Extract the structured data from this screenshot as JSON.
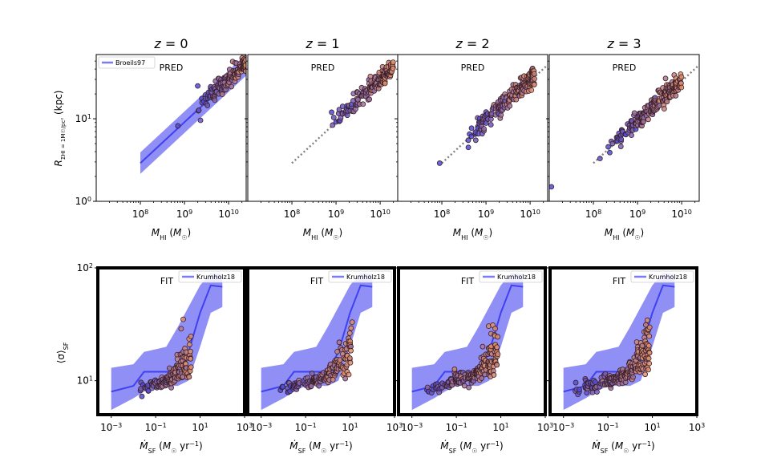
{
  "figure": {
    "column_titles": [
      "z = 0",
      "z = 1",
      "z = 2",
      "z = 3"
    ],
    "colors": {
      "band": "#7b7bf5",
      "band_line": "#4040f0",
      "dotted": "#808080",
      "point_low": "#4b4bd8",
      "point_high": "#e0906a",
      "point_edge": "#3a1f2a"
    }
  },
  "chart_data": [
    {
      "row": "top",
      "type": "scatter",
      "panel_label": "PRED",
      "legend": "Broeils97",
      "xlabel": "M_HI (M_sun)",
      "ylabel": "R_SigmaHI=1Msun/pc2 (kpc)",
      "xscale": "log",
      "yscale": "log",
      "xlim": [
        10000000.0,
        25000000000.0
      ],
      "ylim": [
        1,
        60
      ],
      "xticks": [
        "10^8",
        "10^9",
        "10^10"
      ],
      "yticks": [
        "10^0",
        "10^1"
      ],
      "relation": {
        "x": [
          100000000.0,
          25000000000.0
        ],
        "y": [
          2.9,
          45.0
        ],
        "band_scatter_dex": 0.13
      },
      "samples": [
        {
          "z": 0,
          "x_log_range": [
            9.3,
            10.4
          ],
          "n": 150,
          "outliers": [
            [
              8.85,
              8.2
            ],
            [
              9.3,
              25
            ]
          ]
        },
        {
          "z": 1,
          "x_log_range": [
            8.9,
            10.3
          ],
          "n": 160,
          "outliers": [
            [
              8.9,
              12
            ],
            [
              9.15,
              11.5
            ]
          ]
        },
        {
          "z": 2,
          "x_log_range": [
            8.6,
            10.1
          ],
          "n": 200,
          "outliers": [
            [
              7.95,
              2.9
            ],
            [
              8.6,
              4.5
            ],
            [
              8.6,
              5.5
            ]
          ]
        },
        {
          "z": 3,
          "x_log_range": [
            8.3,
            10.0
          ],
          "n": 220,
          "outliers": [
            [
              7.05,
              1.5
            ],
            [
              8.15,
              3.3
            ]
          ]
        }
      ]
    },
    {
      "row": "bottom",
      "type": "scatter",
      "panel_label": "FIT",
      "legend": "Krumholz18",
      "xlabel": "Mdot_SF (M_sun yr^-1)",
      "ylabel": "<sigma>_SF",
      "xscale": "log",
      "yscale": "log",
      "xlim": [
        0.00025,
        1000
      ],
      "ylim": [
        5,
        100
      ],
      "xticks": [
        "10^-3",
        "10^-1",
        "10^1",
        "10^3"
      ],
      "yticks": [
        "10^1",
        "10^2"
      ],
      "relation": {
        "x": [
          0.001,
          0.01,
          0.03,
          0.1,
          0.3,
          1,
          3,
          10,
          30,
          100
        ],
        "y": [
          8,
          9,
          12,
          12,
          12,
          12,
          18,
          40,
          70,
          68
        ],
        "y_low": [
          5.5,
          7,
          8,
          9,
          9,
          9,
          10,
          20,
          40,
          45
        ],
        "y_high": [
          13,
          14,
          18,
          19,
          20,
          30,
          45,
          70,
          90,
          88
        ]
      },
      "samples": [
        {
          "z": 0,
          "x_log_range": [
            -1.8,
            0.6
          ],
          "n": 150
        },
        {
          "z": 1,
          "x_log_range": [
            -2.3,
            1.1
          ],
          "n": 170
        },
        {
          "z": 2,
          "x_log_range": [
            -2.5,
            0.9
          ],
          "n": 200
        },
        {
          "z": 3,
          "x_log_range": [
            -2.6,
            0.9
          ],
          "n": 220
        }
      ]
    }
  ]
}
